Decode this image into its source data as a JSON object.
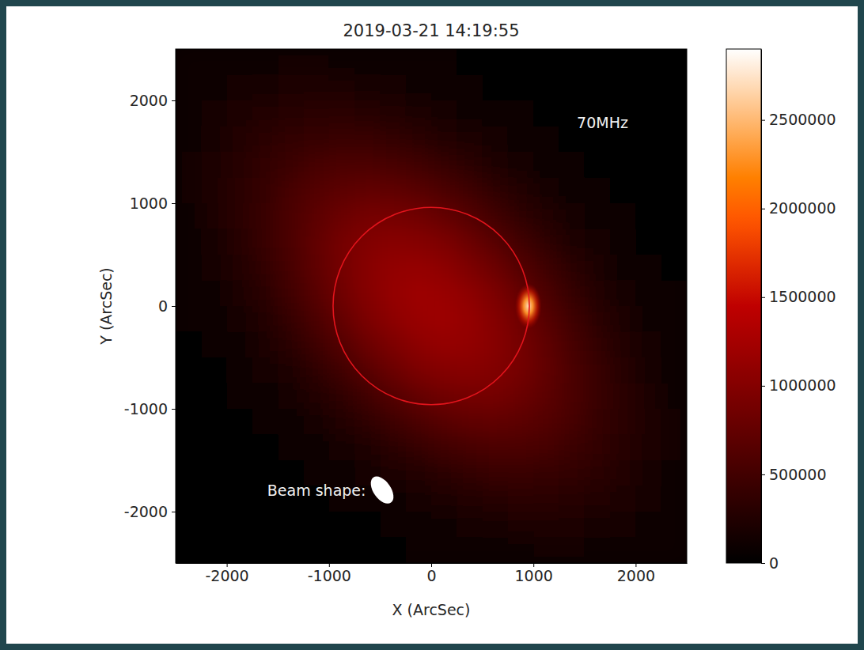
{
  "chart_data": {
    "type": "heatmap",
    "title": "2019-03-21 14:19:55",
    "annotation": "70MHz",
    "xlabel": "X (ArcSec)",
    "ylabel": "Y (ArcSec)",
    "xlim": [
      -2500,
      2500
    ],
    "ylim": [
      -2500,
      2500
    ],
    "xticks": [
      -2000,
      -1000,
      0,
      1000,
      2000
    ],
    "yticks": [
      -2000,
      -1000,
      0,
      1000,
      2000
    ],
    "x": [
      -2375,
      -2125,
      -1875,
      -1625,
      -1375,
      -1125,
      -875,
      -625,
      -375,
      -125,
      125,
      375,
      625,
      875,
      1125,
      1375,
      1625,
      1875,
      2125,
      2375
    ],
    "y": [
      2375,
      2125,
      1875,
      1625,
      1375,
      1125,
      875,
      625,
      375,
      125,
      -125,
      -375,
      -625,
      -875,
      -1125,
      -1375,
      -1625,
      -1875,
      -2125,
      -2375
    ],
    "z": [
      [
        70000,
        90000,
        110000,
        130000,
        140000,
        140000,
        130000,
        110000,
        90000,
        80000,
        50000,
        30000,
        30000,
        20000,
        10000,
        10000,
        0,
        0,
        0,
        0
      ],
      [
        90000,
        120000,
        150000,
        180000,
        200000,
        210000,
        200000,
        190000,
        160000,
        130000,
        100000,
        70000,
        40000,
        30000,
        20000,
        10000,
        10000,
        0,
        0,
        0
      ],
      [
        110000,
        150000,
        200000,
        250000,
        280000,
        310000,
        310000,
        290000,
        260000,
        210000,
        170000,
        130000,
        90000,
        50000,
        30000,
        20000,
        10000,
        10000,
        0,
        0
      ],
      [
        130000,
        180000,
        250000,
        310000,
        370000,
        410000,
        430000,
        430000,
        390000,
        330000,
        270000,
        200000,
        140000,
        90000,
        60000,
        30000,
        20000,
        10000,
        10000,
        0
      ],
      [
        140000,
        200000,
        280000,
        370000,
        450000,
        530000,
        570000,
        570000,
        540000,
        480000,
        410000,
        310000,
        230000,
        160000,
        100000,
        60000,
        30000,
        20000,
        10000,
        10000
      ],
      [
        140000,
        210000,
        310000,
        410000,
        530000,
        620000,
        700000,
        730000,
        710000,
        660000,
        570000,
        460000,
        350000,
        250000,
        160000,
        100000,
        60000,
        30000,
        20000,
        10000
      ],
      [
        130000,
        200000,
        310000,
        430000,
        570000,
        700000,
        810000,
        880000,
        880000,
        840000,
        750000,
        630000,
        490000,
        360000,
        250000,
        160000,
        90000,
        50000,
        30000,
        20000
      ],
      [
        110000,
        190000,
        290000,
        430000,
        570000,
        730000,
        880000,
        980000,
        1020000,
        1000000,
        930000,
        800000,
        650000,
        490000,
        350000,
        230000,
        140000,
        90000,
        40000,
        30000
      ],
      [
        90000,
        160000,
        260000,
        390000,
        540000,
        710000,
        880000,
        1020000,
        1110000,
        1120000,
        1070000,
        950000,
        800000,
        630000,
        460000,
        310000,
        200000,
        130000,
        70000,
        30000
      ],
      [
        80000,
        130000,
        210000,
        330000,
        480000,
        660000,
        840000,
        1000000,
        1120000,
        1180000,
        1160000,
        1070000,
        930000,
        750000,
        570000,
        410000,
        270000,
        170000,
        100000,
        50000
      ],
      [
        50000,
        100000,
        170000,
        270000,
        410000,
        570000,
        750000,
        930000,
        1070000,
        1160000,
        1180000,
        1120000,
        1000000,
        840000,
        660000,
        480000,
        330000,
        210000,
        130000,
        80000
      ],
      [
        30000,
        70000,
        130000,
        200000,
        310000,
        460000,
        630000,
        800000,
        950000,
        1070000,
        1120000,
        1110000,
        1020000,
        880000,
        710000,
        540000,
        390000,
        260000,
        160000,
        90000
      ],
      [
        30000,
        40000,
        90000,
        140000,
        230000,
        350000,
        490000,
        650000,
        800000,
        930000,
        1000000,
        1020000,
        980000,
        880000,
        730000,
        570000,
        430000,
        290000,
        190000,
        110000
      ],
      [
        20000,
        30000,
        50000,
        90000,
        160000,
        250000,
        360000,
        490000,
        630000,
        750000,
        840000,
        880000,
        880000,
        810000,
        700000,
        570000,
        430000,
        310000,
        200000,
        130000
      ],
      [
        10000,
        20000,
        30000,
        60000,
        100000,
        160000,
        250000,
        350000,
        460000,
        570000,
        660000,
        710000,
        730000,
        700000,
        620000,
        530000,
        410000,
        310000,
        210000,
        140000
      ],
      [
        10000,
        10000,
        20000,
        30000,
        60000,
        100000,
        160000,
        230000,
        310000,
        410000,
        480000,
        540000,
        570000,
        570000,
        530000,
        450000,
        370000,
        280000,
        200000,
        140000
      ],
      [
        0,
        10000,
        10000,
        20000,
        30000,
        60000,
        90000,
        140000,
        200000,
        270000,
        330000,
        390000,
        430000,
        430000,
        410000,
        370000,
        310000,
        250000,
        180000,
        130000
      ],
      [
        0,
        0,
        10000,
        10000,
        20000,
        30000,
        50000,
        90000,
        130000,
        170000,
        210000,
        260000,
        290000,
        310000,
        310000,
        280000,
        250000,
        200000,
        150000,
        110000
      ],
      [
        0,
        0,
        0,
        10000,
        10000,
        20000,
        30000,
        40000,
        70000,
        100000,
        130000,
        160000,
        190000,
        200000,
        210000,
        200000,
        180000,
        150000,
        120000,
        90000
      ],
      [
        0,
        0,
        0,
        0,
        10000,
        10000,
        20000,
        30000,
        30000,
        50000,
        80000,
        90000,
        110000,
        130000,
        140000,
        140000,
        130000,
        110000,
        90000,
        70000
      ]
    ],
    "colorbar": {
      "lim": [
        0,
        2900000
      ],
      "ticks": [
        0,
        500000,
        1000000,
        1500000,
        2000000,
        2500000
      ]
    },
    "sources": [
      {
        "x": 950,
        "y": 0,
        "peak": 2700000,
        "size_x": 260,
        "size_y": 440
      }
    ],
    "solar_disk": {
      "x": 0,
      "y": 0,
      "radius": 960
    },
    "beam": {
      "label": "Beam shape:",
      "x": -480,
      "y": -1790,
      "major": 300,
      "minor": 170,
      "angle": -55
    }
  }
}
